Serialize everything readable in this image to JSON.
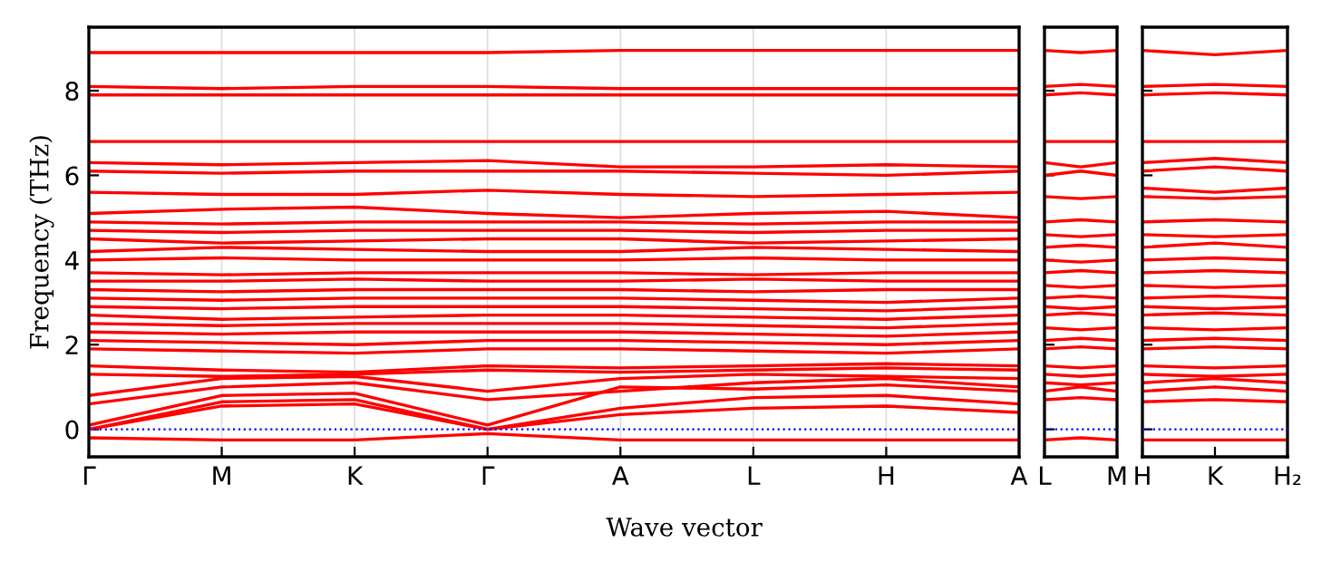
{
  "chart_data": [
    {
      "type": "line",
      "xlabel": "Wave vector",
      "ylabel": "Frequency (THz)",
      "categories": [
        "Γ",
        "M",
        "K",
        "Γ",
        "A",
        "L",
        "H",
        "A"
      ],
      "ylim": [
        -0.65,
        9.5
      ],
      "yticks": [
        0,
        2,
        4,
        6,
        8
      ],
      "grid": "x",
      "legend": false,
      "ref_lines": [
        {
          "axis": "y",
          "value": 0,
          "color": "#0000ff",
          "line_style": "dotted"
        }
      ],
      "series": [
        {
          "color": "#ff0000",
          "values": [
            -0.2,
            -0.25,
            -0.25,
            -0.1,
            -0.25,
            -0.25,
            -0.25,
            -0.25
          ]
        },
        {
          "color": "#ff0000",
          "values": [
            0,
            0.55,
            0.6,
            0,
            0.35,
            0.5,
            0.55,
            0.4
          ]
        },
        {
          "color": "#ff0000",
          "values": [
            0,
            0.65,
            0.7,
            0,
            0.5,
            0.75,
            0.8,
            0.6
          ]
        },
        {
          "color": "#ff0000",
          "values": [
            0.1,
            0.8,
            0.85,
            0.1,
            1.0,
            0.95,
            1.05,
            0.9
          ]
        },
        {
          "color": "#ff0000",
          "values": [
            0.6,
            1.0,
            1.1,
            0.7,
            0.9,
            1.1,
            1.2,
            1.0
          ]
        },
        {
          "color": "#ff0000",
          "values": [
            0.8,
            1.2,
            1.25,
            0.9,
            1.2,
            1.3,
            1.25,
            1.2
          ]
        },
        {
          "color": "#ff0000",
          "values": [
            1.3,
            1.25,
            1.3,
            1.4,
            1.35,
            1.4,
            1.45,
            1.4
          ]
        },
        {
          "color": "#ff0000",
          "values": [
            1.5,
            1.4,
            1.35,
            1.5,
            1.45,
            1.5,
            1.55,
            1.5
          ]
        },
        {
          "color": "#ff0000",
          "values": [
            1.9,
            1.85,
            1.8,
            1.9,
            1.9,
            1.85,
            1.8,
            1.9
          ]
        },
        {
          "color": "#ff0000",
          "values": [
            2.1,
            2.05,
            2.0,
            2.1,
            2.1,
            2.05,
            2.0,
            2.1
          ]
        },
        {
          "color": "#ff0000",
          "values": [
            2.3,
            2.25,
            2.3,
            2.3,
            2.3,
            2.25,
            2.2,
            2.3
          ]
        },
        {
          "color": "#ff0000",
          "values": [
            2.5,
            2.45,
            2.5,
            2.5,
            2.5,
            2.45,
            2.4,
            2.5
          ]
        },
        {
          "color": "#ff0000",
          "values": [
            2.7,
            2.6,
            2.65,
            2.7,
            2.7,
            2.65,
            2.6,
            2.7
          ]
        },
        {
          "color": "#ff0000",
          "values": [
            2.9,
            2.85,
            2.9,
            2.9,
            2.9,
            2.85,
            2.8,
            2.9
          ]
        },
        {
          "color": "#ff0000",
          "values": [
            3.1,
            3.05,
            3.1,
            3.1,
            3.1,
            3.05,
            3.0,
            3.1
          ]
        },
        {
          "color": "#ff0000",
          "values": [
            3.3,
            3.25,
            3.3,
            3.3,
            3.3,
            3.25,
            3.3,
            3.3
          ]
        },
        {
          "color": "#ff0000",
          "values": [
            3.5,
            3.5,
            3.55,
            3.5,
            3.5,
            3.55,
            3.5,
            3.5
          ]
        },
        {
          "color": "#ff0000",
          "values": [
            3.7,
            3.65,
            3.7,
            3.7,
            3.7,
            3.65,
            3.7,
            3.7
          ]
        },
        {
          "color": "#ff0000",
          "values": [
            4.0,
            4.05,
            4.0,
            4.0,
            4.0,
            4.05,
            4.0,
            4.0
          ]
        },
        {
          "color": "#ff0000",
          "values": [
            4.2,
            4.3,
            4.25,
            4.2,
            4.2,
            4.3,
            4.25,
            4.2
          ]
        },
        {
          "color": "#ff0000",
          "values": [
            4.5,
            4.4,
            4.45,
            4.5,
            4.5,
            4.4,
            4.45,
            4.5
          ]
        },
        {
          "color": "#ff0000",
          "values": [
            4.7,
            4.65,
            4.7,
            4.7,
            4.7,
            4.65,
            4.7,
            4.7
          ]
        },
        {
          "color": "#ff0000",
          "values": [
            4.9,
            4.85,
            4.9,
            4.9,
            4.9,
            4.85,
            4.9,
            4.9
          ]
        },
        {
          "color": "#ff0000",
          "values": [
            5.1,
            5.2,
            5.25,
            5.1,
            5.0,
            5.1,
            5.15,
            5.0
          ]
        },
        {
          "color": "#ff0000",
          "values": [
            5.6,
            5.55,
            5.55,
            5.65,
            5.55,
            5.5,
            5.55,
            5.6
          ]
        },
        {
          "color": "#ff0000",
          "values": [
            6.1,
            6.05,
            6.1,
            6.1,
            6.1,
            6.05,
            6.0,
            6.1
          ]
        },
        {
          "color": "#ff0000",
          "values": [
            6.3,
            6.25,
            6.3,
            6.35,
            6.2,
            6.2,
            6.25,
            6.2
          ]
        },
        {
          "color": "#ff0000",
          "values": [
            6.8,
            6.8,
            6.8,
            6.8,
            6.8,
            6.8,
            6.8,
            6.8
          ]
        },
        {
          "color": "#ff0000",
          "values": [
            7.9,
            7.9,
            7.9,
            7.9,
            7.9,
            7.9,
            7.9,
            7.9
          ]
        },
        {
          "color": "#ff0000",
          "values": [
            8.1,
            8.05,
            8.1,
            8.1,
            8.05,
            8.05,
            8.05,
            8.05
          ]
        },
        {
          "color": "#ff0000",
          "values": [
            8.9,
            8.9,
            8.9,
            8.9,
            8.95,
            8.95,
            8.95,
            8.95
          ]
        }
      ]
    },
    {
      "type": "line",
      "categories": [
        "L",
        null,
        "M"
      ],
      "ylim": [
        -0.65,
        9.5
      ],
      "yticks": [
        0,
        2,
        4,
        6,
        8
      ],
      "tick_labels": "x",
      "legend": false,
      "ref_lines": [
        {
          "axis": "y",
          "value": 0,
          "color": "#0000ff",
          "line_style": "dotted"
        }
      ],
      "series": [
        {
          "color": "#ff0000",
          "values": [
            -0.25,
            -0.2,
            -0.25
          ]
        },
        {
          "color": "#ff0000",
          "values": [
            0.7,
            0.75,
            0.7
          ]
        },
        {
          "color": "#ff0000",
          "values": [
            0.9,
            1.0,
            0.9
          ]
        },
        {
          "color": "#ff0000",
          "values": [
            1.1,
            1.05,
            1.1
          ]
        },
        {
          "color": "#ff0000",
          "values": [
            1.3,
            1.25,
            1.3
          ]
        },
        {
          "color": "#ff0000",
          "values": [
            1.5,
            1.45,
            1.5
          ]
        },
        {
          "color": "#ff0000",
          "values": [
            1.9,
            1.95,
            1.9
          ]
        },
        {
          "color": "#ff0000",
          "values": [
            2.1,
            2.15,
            2.1
          ]
        },
        {
          "color": "#ff0000",
          "values": [
            2.4,
            2.35,
            2.4
          ]
        },
        {
          "color": "#ff0000",
          "values": [
            2.7,
            2.75,
            2.7
          ]
        },
        {
          "color": "#ff0000",
          "values": [
            2.9,
            2.85,
            2.9
          ]
        },
        {
          "color": "#ff0000",
          "values": [
            3.1,
            3.15,
            3.1
          ]
        },
        {
          "color": "#ff0000",
          "values": [
            3.4,
            3.35,
            3.4
          ]
        },
        {
          "color": "#ff0000",
          "values": [
            3.7,
            3.75,
            3.7
          ]
        },
        {
          "color": "#ff0000",
          "values": [
            4.0,
            3.95,
            4.0
          ]
        },
        {
          "color": "#ff0000",
          "values": [
            4.3,
            4.35,
            4.3
          ]
        },
        {
          "color": "#ff0000",
          "values": [
            4.6,
            4.55,
            4.6
          ]
        },
        {
          "color": "#ff0000",
          "values": [
            4.9,
            4.95,
            4.9
          ]
        },
        {
          "color": "#ff0000",
          "values": [
            5.5,
            5.45,
            5.5
          ]
        },
        {
          "color": "#ff0000",
          "values": [
            6.0,
            6.1,
            6.0
          ]
        },
        {
          "color": "#ff0000",
          "values": [
            6.3,
            6.2,
            6.3
          ]
        },
        {
          "color": "#ff0000",
          "values": [
            6.8,
            6.8,
            6.8
          ]
        },
        {
          "color": "#ff0000",
          "values": [
            7.9,
            7.95,
            7.9
          ]
        },
        {
          "color": "#ff0000",
          "values": [
            8.1,
            8.15,
            8.1
          ]
        },
        {
          "color": "#ff0000",
          "values": [
            8.95,
            8.9,
            8.95
          ]
        }
      ]
    },
    {
      "type": "line",
      "categories": [
        "H",
        "K",
        "H₂"
      ],
      "ylim": [
        -0.65,
        9.5
      ],
      "yticks": [
        0,
        2,
        4,
        6,
        8
      ],
      "tick_labels": "x",
      "legend": false,
      "ref_lines": [
        {
          "axis": "y",
          "value": 0,
          "color": "#0000ff",
          "line_style": "dotted"
        }
      ],
      "series": [
        {
          "color": "#ff0000",
          "values": [
            -0.25,
            -0.25,
            -0.25
          ]
        },
        {
          "color": "#ff0000",
          "values": [
            0.65,
            0.7,
            0.65
          ]
        },
        {
          "color": "#ff0000",
          "values": [
            0.9,
            1.0,
            0.9
          ]
        },
        {
          "color": "#ff0000",
          "values": [
            1.1,
            1.2,
            1.1
          ]
        },
        {
          "color": "#ff0000",
          "values": [
            1.3,
            1.25,
            1.3
          ]
        },
        {
          "color": "#ff0000",
          "values": [
            1.5,
            1.45,
            1.5
          ]
        },
        {
          "color": "#ff0000",
          "values": [
            1.9,
            1.95,
            1.9
          ]
        },
        {
          "color": "#ff0000",
          "values": [
            2.1,
            2.15,
            2.1
          ]
        },
        {
          "color": "#ff0000",
          "values": [
            2.4,
            2.35,
            2.4
          ]
        },
        {
          "color": "#ff0000",
          "values": [
            2.7,
            2.75,
            2.7
          ]
        },
        {
          "color": "#ff0000",
          "values": [
            2.9,
            2.85,
            2.9
          ]
        },
        {
          "color": "#ff0000",
          "values": [
            3.1,
            3.15,
            3.1
          ]
        },
        {
          "color": "#ff0000",
          "values": [
            3.4,
            3.35,
            3.4
          ]
        },
        {
          "color": "#ff0000",
          "values": [
            3.7,
            3.75,
            3.7
          ]
        },
        {
          "color": "#ff0000",
          "values": [
            4.0,
            4.05,
            4.0
          ]
        },
        {
          "color": "#ff0000",
          "values": [
            4.3,
            4.4,
            4.3
          ]
        },
        {
          "color": "#ff0000",
          "values": [
            4.6,
            4.55,
            4.6
          ]
        },
        {
          "color": "#ff0000",
          "values": [
            4.9,
            4.95,
            4.9
          ]
        },
        {
          "color": "#ff0000",
          "values": [
            5.5,
            5.45,
            5.5
          ]
        },
        {
          "color": "#ff0000",
          "values": [
            5.7,
            5.6,
            5.7
          ]
        },
        {
          "color": "#ff0000",
          "values": [
            6.1,
            6.2,
            6.1
          ]
        },
        {
          "color": "#ff0000",
          "values": [
            6.3,
            6.4,
            6.3
          ]
        },
        {
          "color": "#ff0000",
          "values": [
            6.8,
            6.8,
            6.8
          ]
        },
        {
          "color": "#ff0000",
          "values": [
            7.9,
            7.95,
            7.9
          ]
        },
        {
          "color": "#ff0000",
          "values": [
            8.1,
            8.15,
            8.1
          ]
        },
        {
          "color": "#ff0000",
          "values": [
            8.95,
            8.85,
            8.95
          ]
        }
      ]
    }
  ]
}
